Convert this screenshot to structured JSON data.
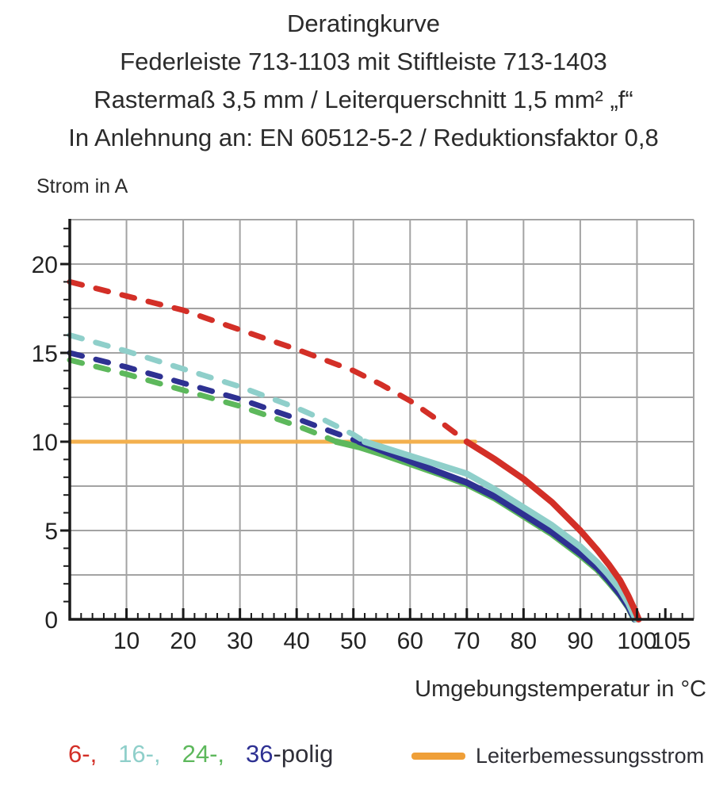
{
  "title_lines": [
    "Deratingkurve",
    "Federleiste 713-1103 mit Stiftleiste 713-1403",
    "Rastermaß 3,5 mm / Leiterquerschnitt 1,5 mm² „f“",
    "In Anlehnung an: EN 60512-5-2 / Reduktionsfaktor 0,8"
  ],
  "chart_data": {
    "type": "line",
    "ylabel": "Strom in A",
    "xlabel": "Umgebungstemperatur in °C",
    "xlim": [
      0,
      110
    ],
    "ylim": [
      0,
      22.5
    ],
    "x_tick_labels": [
      10,
      20,
      30,
      40,
      50,
      60,
      70,
      80,
      90,
      100,
      105
    ],
    "y_tick_labels": [
      0,
      5,
      10,
      15,
      20
    ],
    "x_gridline_step": 10,
    "y_gridline_step": 2.5,
    "x_minor_step": 2,
    "y_minor_step": 1,
    "grid_color": "#a3a3a3",
    "axis_color": "#1a1a1a",
    "series": [
      {
        "name": "leiterbemessungsstrom-line",
        "label": "Leiterbemessungsstrom",
        "color": "#f3b04e",
        "style": "solid",
        "width": 5,
        "points": [
          [
            0,
            10
          ],
          [
            71.5,
            10
          ]
        ]
      },
      {
        "name": "24-polig-dashed",
        "label": "24-polig (dashed)",
        "color": "#5db85c",
        "style": "dashed",
        "width": 7,
        "points": [
          [
            0,
            14.6
          ],
          [
            10,
            13.8
          ],
          [
            20,
            12.9
          ],
          [
            30,
            12.0
          ],
          [
            40,
            10.9
          ],
          [
            44,
            10.4
          ],
          [
            47,
            10
          ]
        ]
      },
      {
        "name": "24-polig-solid",
        "label": "24-polig",
        "color": "#5db85c",
        "style": "solid",
        "width": 8,
        "points": [
          [
            47,
            10
          ],
          [
            51,
            9.7
          ],
          [
            55,
            9.3
          ],
          [
            60,
            8.75
          ],
          [
            65,
            8.2
          ],
          [
            70,
            7.6
          ],
          [
            75,
            6.8
          ],
          [
            80,
            5.8
          ],
          [
            85,
            4.8
          ],
          [
            90,
            3.6
          ],
          [
            93,
            2.8
          ],
          [
            95,
            2.1
          ],
          [
            97,
            1.35
          ],
          [
            98.5,
            0.65
          ],
          [
            99.5,
            0
          ]
        ]
      },
      {
        "name": "36-polig-dashed",
        "label": "36-polig (dashed)",
        "color": "#2e3192",
        "style": "dashed",
        "width": 7,
        "points": [
          [
            0,
            15
          ],
          [
            10,
            14.2
          ],
          [
            20,
            13.3
          ],
          [
            30,
            12.4
          ],
          [
            40,
            11.3
          ],
          [
            45,
            10.7
          ],
          [
            51,
            10
          ]
        ]
      },
      {
        "name": "36-polig-solid",
        "label": "36-polig",
        "color": "#2e3192",
        "style": "solid",
        "width": 8,
        "points": [
          [
            51,
            10
          ],
          [
            55,
            9.5
          ],
          [
            60,
            8.9
          ],
          [
            65,
            8.3
          ],
          [
            70,
            7.7
          ],
          [
            75,
            6.9
          ],
          [
            80,
            5.9
          ],
          [
            85,
            4.9
          ],
          [
            90,
            3.7
          ],
          [
            93,
            2.9
          ],
          [
            95,
            2.2
          ],
          [
            97,
            1.4
          ],
          [
            98.5,
            0.7
          ],
          [
            99.6,
            0
          ]
        ]
      },
      {
        "name": "16-polig-dashed",
        "label": "16-polig (dashed)",
        "color": "#8fcfca",
        "style": "dashed",
        "width": 7,
        "points": [
          [
            0,
            16
          ],
          [
            10,
            15.1
          ],
          [
            20,
            14.1
          ],
          [
            30,
            13.1
          ],
          [
            40,
            11.9
          ],
          [
            45,
            11.2
          ],
          [
            50,
            10.4
          ],
          [
            52,
            10
          ]
        ]
      },
      {
        "name": "16-polig-solid",
        "label": "16-polig",
        "color": "#8fcfca",
        "style": "solid",
        "width": 8,
        "points": [
          [
            52,
            10
          ],
          [
            56,
            9.6
          ],
          [
            60,
            9.2
          ],
          [
            65,
            8.7
          ],
          [
            70,
            8.2
          ],
          [
            75,
            7.3
          ],
          [
            80,
            6.3
          ],
          [
            85,
            5.3
          ],
          [
            90,
            4.1
          ],
          [
            93,
            3.2
          ],
          [
            95,
            2.5
          ],
          [
            97,
            1.7
          ],
          [
            98.5,
            0.9
          ],
          [
            99.8,
            0
          ]
        ]
      },
      {
        "name": "6-polig-dashed",
        "label": "6-polig (dashed)",
        "color": "#d32f27",
        "style": "dashed",
        "width": 7,
        "points": [
          [
            0,
            19
          ],
          [
            10,
            18.2
          ],
          [
            20,
            17.4
          ],
          [
            30,
            16.3
          ],
          [
            40,
            15.2
          ],
          [
            50,
            14.0
          ],
          [
            55,
            13.2
          ],
          [
            60,
            12.3
          ],
          [
            65,
            11.2
          ],
          [
            70,
            10
          ]
        ]
      },
      {
        "name": "6-polig-solid",
        "label": "6-polig",
        "color": "#d32f27",
        "style": "solid",
        "width": 8,
        "points": [
          [
            70,
            10
          ],
          [
            75,
            9.0
          ],
          [
            80,
            7.9
          ],
          [
            85,
            6.6
          ],
          [
            90,
            5.0
          ],
          [
            93,
            3.9
          ],
          [
            95,
            3.1
          ],
          [
            97,
            2.2
          ],
          [
            98.5,
            1.3
          ],
          [
            99.5,
            0.6
          ],
          [
            100.3,
            0
          ]
        ]
      }
    ]
  },
  "legend": {
    "pole_items": [
      {
        "text": "6-,",
        "color": "#d32f27",
        "joins_next": false
      },
      {
        "text": "16-,",
        "color": "#8fcfca",
        "joins_next": false
      },
      {
        "text": "24-,",
        "color": "#5db85c",
        "joins_next": false
      },
      {
        "text": "36",
        "color": "#2e3192",
        "joins_next": true
      },
      {
        "text": "-polig",
        "color": "#2f2f38",
        "joins_next": false
      }
    ],
    "rated_current": {
      "label": "Leiterbemessungsstrom",
      "color": "#ef9f38"
    }
  }
}
